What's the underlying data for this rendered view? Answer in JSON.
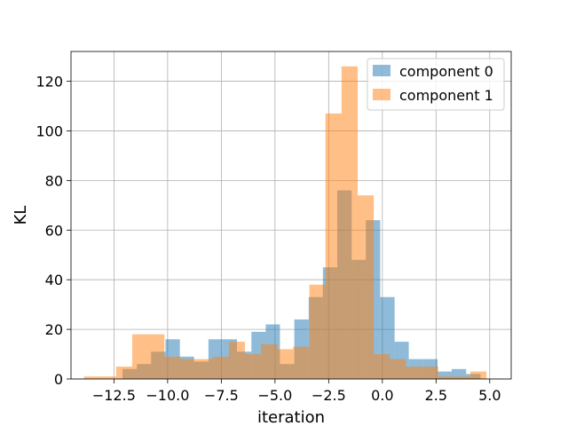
{
  "chart_data": {
    "type": "histogram",
    "xlabel": "iteration",
    "ylabel": "KL",
    "xlim": [
      -14.5,
      6.0
    ],
    "ylim": [
      0,
      132
    ],
    "xticks": [
      -12.5,
      -10.0,
      -7.5,
      -5.0,
      -2.5,
      0.0,
      2.5,
      5.0
    ],
    "xtick_labels": [
      "−12.5",
      "−10.0",
      "−7.5",
      "−5.0",
      "−2.5",
      "0.0",
      "2.5",
      "5.0"
    ],
    "yticks": [
      0,
      20,
      40,
      60,
      80,
      100,
      120
    ],
    "ytick_labels": [
      "0",
      "20",
      "40",
      "60",
      "80",
      "100",
      "120"
    ],
    "grid": true,
    "legend_position": "top-right",
    "series": [
      {
        "name": "component 0",
        "color": "#1f77b4",
        "alpha": 0.5,
        "bin_edges": [
          -12.1,
          -11.43,
          -10.77,
          -10.1,
          -9.43,
          -8.77,
          -8.1,
          -7.43,
          -6.77,
          -6.1,
          -5.43,
          -4.77,
          -4.1,
          -3.43,
          -2.77,
          -2.1,
          -1.43,
          -0.77,
          -0.1,
          0.57,
          1.23,
          1.9,
          2.57,
          3.23,
          3.9,
          4.57
        ],
        "counts": [
          4,
          6,
          11,
          16,
          9,
          7,
          16,
          16,
          11,
          19,
          22,
          6,
          24,
          33,
          45,
          76,
          48,
          64,
          33,
          15,
          8,
          8,
          3,
          4,
          2
        ]
      },
      {
        "name": "component 1",
        "color": "#ff7f0e",
        "alpha": 0.5,
        "bin_edges": [
          -13.9,
          -12.4,
          -11.65,
          -10.15,
          -9.4,
          -8.65,
          -7.9,
          -7.15,
          -6.4,
          -5.65,
          -4.9,
          -4.15,
          -3.4,
          -2.65,
          -1.9,
          -1.15,
          -0.4,
          0.35,
          1.1,
          1.85,
          2.6,
          3.35,
          4.1,
          4.85
        ],
        "counts": [
          1,
          5,
          18,
          9,
          8,
          8,
          9,
          15,
          10,
          14,
          12,
          13,
          38,
          107,
          126,
          74,
          10,
          8,
          5,
          5,
          1,
          1,
          3
        ],
        "notes": ""
      }
    ]
  }
}
